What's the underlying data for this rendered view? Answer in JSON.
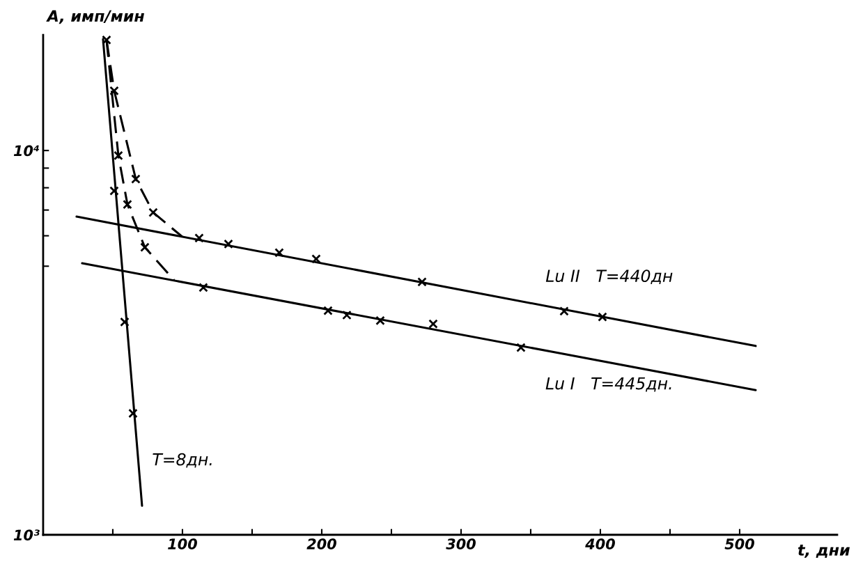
{
  "chart_data": {
    "type": "scatter",
    "xlabel": "t, дни",
    "ylabel": "A, имп/мин",
    "log": "y",
    "xlim": [
      0,
      570
    ],
    "ylim": [
      1000,
      20000
    ],
    "xticks": [
      {
        "value": 50,
        "label": null
      },
      100,
      {
        "value": 150,
        "label": null
      },
      200,
      {
        "value": 250,
        "label": null
      },
      300,
      {
        "value": 350,
        "label": null
      },
      400,
      {
        "value": 450,
        "label": null
      },
      500
    ],
    "yticks": [
      {
        "value": 1000,
        "label": "10³"
      },
      {
        "value": 5000,
        "label": null
      },
      {
        "value": 6000,
        "label": null
      },
      {
        "value": 7000,
        "label": null
      },
      {
        "value": 8000,
        "label": null
      },
      {
        "value": 9000,
        "label": null
      },
      {
        "value": 10000,
        "label": "10⁴"
      }
    ],
    "grid": false,
    "legend": false,
    "series": [
      {
        "type": "line",
        "color": "#000000",
        "line_style": "solid",
        "marker": "none",
        "x": [
          43,
          71
        ],
        "values": [
          19500,
          1190
        ]
      },
      {
        "type": "line",
        "color": "#000000",
        "line_style": "solid",
        "marker": "none",
        "x": [
          24,
          511.5
        ],
        "values": [
          6730,
          3100
        ]
      },
      {
        "type": "line",
        "color": "#000000",
        "line_style": "solid",
        "marker": "none",
        "x": [
          28,
          511.5
        ],
        "values": [
          5090,
          2380
        ]
      },
      {
        "type": "line",
        "color": "#000000",
        "line_style": "dashed",
        "marker": "none",
        "x": [
          45.5,
          51,
          66.5,
          79,
          100
        ],
        "values": [
          19400,
          14300,
          8430,
          6900,
          5960
        ]
      },
      {
        "type": "line",
        "color": "#000000",
        "line_style": "dashed",
        "marker": "none",
        "x": [
          45.5,
          54,
          60.5,
          73,
          94
        ],
        "values": [
          19400,
          9700,
          7240,
          5600,
          4600
        ]
      },
      {
        "color": "#000000",
        "marker": "cross",
        "x": [
          45.5,
          51,
          58.5,
          64.5
        ],
        "values": [
          19400,
          7850,
          3580,
          2070
        ]
      },
      {
        "color": "#000000",
        "marker": "cross",
        "x": [
          51,
          66.5,
          79,
          54,
          60.5,
          73
        ],
        "values": [
          14300,
          8430,
          6900,
          9700,
          7240,
          5600
        ]
      },
      {
        "color": "#000000",
        "marker": "cross",
        "x": [
          112,
          133,
          169.5,
          196,
          272,
          374,
          401.5
        ],
        "values": [
          5920,
          5710,
          5420,
          5220,
          4550,
          3820,
          3690
        ]
      },
      {
        "color": "#000000",
        "marker": "cross",
        "x": [
          115,
          204.5,
          218,
          242,
          280,
          343
        ],
        "values": [
          4400,
          3830,
          3730,
          3610,
          3540,
          3070
        ]
      }
    ],
    "annotations": [
      "Lu II   T=440дн",
      "Lu I   T=445дн.",
      "T=8дн."
    ]
  }
}
